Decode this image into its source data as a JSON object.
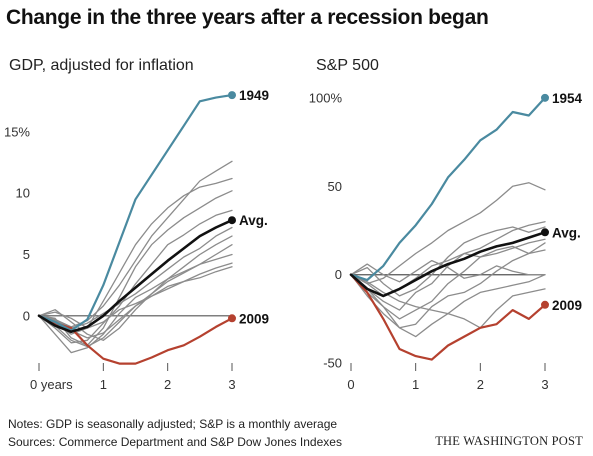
{
  "title": "Change in the three years after a recession began",
  "notes": "Notes: GDP is seasonally adjusted; S&P is a monthly average",
  "sources": "Sources: Commerce Department and S&P Dow Jones Indexes",
  "credit": "THE WASHINGTON POST",
  "colors": {
    "highlight_blue": "#4a8aa0",
    "highlight_red": "#b5412f",
    "average": "#111111",
    "background_lines": "#8c8c8c",
    "axis": "#555555"
  },
  "chart_data": [
    {
      "type": "line",
      "title": "GDP, adjusted for inflation",
      "xlabel": "",
      "ylabel": "",
      "x_ticks": [
        {
          "value": 0,
          "label": "0 years"
        },
        {
          "value": 1,
          "label": "1"
        },
        {
          "value": 2,
          "label": "2"
        },
        {
          "value": 3,
          "label": "3"
        }
      ],
      "y_ticks": [
        {
          "value": 0,
          "label": "0"
        },
        {
          "value": 5,
          "label": "5"
        },
        {
          "value": 10,
          "label": "10"
        },
        {
          "value": 15,
          "label": "15%"
        }
      ],
      "xlim": [
        0,
        3
      ],
      "ylim": [
        -4.5,
        18.5
      ],
      "grid": false,
      "series": [
        {
          "name": "1949",
          "role": "highlight_blue",
          "label_end": true,
          "x": [
            0,
            0.25,
            0.5,
            0.75,
            1.0,
            1.25,
            1.5,
            1.75,
            2.0,
            2.25,
            2.5,
            2.75,
            3.0
          ],
          "y": [
            0,
            -0.5,
            -1.2,
            -0.3,
            2.5,
            6.0,
            9.5,
            11.5,
            13.5,
            15.5,
            17.5,
            17.8,
            18.0
          ]
        },
        {
          "name": "Avg.",
          "role": "average",
          "label_end": true,
          "x": [
            0,
            0.25,
            0.5,
            0.75,
            1.0,
            1.25,
            1.5,
            1.75,
            2.0,
            2.25,
            2.5,
            2.75,
            3.0
          ],
          "y": [
            0,
            -0.8,
            -1.3,
            -0.9,
            0,
            1.2,
            2.3,
            3.4,
            4.5,
            5.5,
            6.5,
            7.2,
            7.8
          ]
        },
        {
          "name": "2009",
          "role": "highlight_red",
          "label_end": true,
          "x": [
            0,
            0.25,
            0.5,
            0.75,
            1.0,
            1.25,
            1.5,
            1.75,
            2.0,
            2.25,
            2.5,
            2.75,
            3.0
          ],
          "y": [
            0,
            -0.6,
            -1.0,
            -2.4,
            -3.5,
            -3.9,
            -3.9,
            -3.4,
            -2.8,
            -2.4,
            -1.7,
            -0.9,
            -0.2
          ]
        },
        {
          "name": "",
          "role": "background_lines",
          "x": [
            0,
            0.25,
            0.5,
            0.75,
            1.0,
            1.25,
            1.5,
            1.75,
            2.0,
            2.25,
            2.5,
            2.75,
            3.0
          ],
          "y": [
            0,
            -0.3,
            -0.9,
            -0.4,
            0.8,
            2.5,
            4.5,
            6.5,
            8.0,
            9.5,
            11.0,
            11.8,
            12.6
          ]
        },
        {
          "name": "",
          "role": "background_lines",
          "x": [
            0,
            0.25,
            0.5,
            0.75,
            1.0,
            1.25,
            1.5,
            1.75,
            2.0,
            2.25,
            2.5,
            2.75,
            3.0
          ],
          "y": [
            0,
            -0.6,
            -1.5,
            -1.0,
            1.2,
            3.5,
            5.8,
            7.5,
            8.8,
            9.8,
            10.5,
            10.8,
            11.2
          ]
        },
        {
          "name": "",
          "role": "background_lines",
          "x": [
            0,
            0.25,
            0.5,
            0.75,
            1.0,
            1.25,
            1.5,
            1.75,
            2.0,
            2.25,
            2.5,
            2.75,
            3.0
          ],
          "y": [
            0,
            -0.2,
            -1.8,
            -2.4,
            -1.0,
            1.5,
            4.0,
            5.8,
            7.0,
            8.0,
            8.8,
            9.6,
            10.2
          ]
        },
        {
          "name": "",
          "role": "background_lines",
          "x": [
            0,
            0.25,
            0.5,
            0.75,
            1.0,
            1.25,
            1.5,
            1.75,
            2.0,
            2.25,
            2.5,
            2.75,
            3.0
          ],
          "y": [
            0,
            -1.0,
            -2.2,
            -2.0,
            -0.6,
            0.8,
            2.6,
            4.2,
            5.8,
            6.6,
            7.5,
            8.2,
            8.6
          ]
        },
        {
          "name": "",
          "role": "background_lines",
          "x": [
            0,
            0.25,
            0.5,
            0.75,
            1.0,
            1.25,
            1.5,
            1.75,
            2.0,
            2.25,
            2.5,
            2.75,
            3.0
          ],
          "y": [
            0,
            -0.4,
            -1.0,
            -0.6,
            0.2,
            1.0,
            1.8,
            2.8,
            3.8,
            4.8,
            5.5,
            6.5,
            7.2
          ]
        },
        {
          "name": "",
          "role": "background_lines",
          "x": [
            0,
            0.25,
            0.5,
            0.75,
            1.0,
            1.25,
            1.5,
            1.75,
            2.0,
            2.25,
            2.5,
            2.75,
            3.0
          ],
          "y": [
            0,
            0.5,
            -0.5,
            -1.5,
            -2.0,
            -1.0,
            0.5,
            1.8,
            3.0,
            4.0,
            5.0,
            5.8,
            6.5
          ]
        },
        {
          "name": "",
          "role": "background_lines",
          "x": [
            0,
            0.25,
            0.5,
            0.75,
            1.0,
            1.25,
            1.5,
            1.75,
            2.0,
            2.25,
            2.5,
            2.75,
            3.0
          ],
          "y": [
            0,
            -0.8,
            -2.0,
            -2.5,
            -1.8,
            -0.5,
            0.8,
            1.8,
            2.8,
            3.5,
            4.2,
            5.0,
            5.8
          ]
        },
        {
          "name": "",
          "role": "background_lines",
          "x": [
            0,
            0.25,
            0.5,
            0.75,
            1.0,
            1.25,
            1.5,
            1.75,
            2.0,
            2.25,
            2.5,
            2.75,
            3.0
          ],
          "y": [
            0,
            -1.5,
            -3.0,
            -2.6,
            -1.5,
            0.2,
            1.5,
            2.2,
            3.0,
            3.6,
            4.2,
            4.6,
            5.0
          ]
        },
        {
          "name": "",
          "role": "background_lines",
          "x": [
            0,
            0.25,
            0.5,
            0.75,
            1.0,
            1.25,
            1.5,
            1.75,
            2.0,
            2.25,
            2.5,
            2.75,
            3.0
          ],
          "y": [
            0,
            -0.5,
            -1.2,
            -1.8,
            -1.4,
            -0.3,
            0.8,
            1.6,
            2.4,
            2.8,
            3.4,
            3.9,
            4.3
          ]
        },
        {
          "name": "",
          "role": "background_lines",
          "x": [
            0,
            0.25,
            0.5,
            0.75,
            1.0,
            1.25,
            1.5,
            1.75,
            2.0,
            2.25,
            2.5,
            2.75,
            3.0
          ],
          "y": [
            0,
            0.3,
            -0.2,
            -1.0,
            -0.5,
            0.5,
            1.0,
            1.6,
            2.2,
            2.8,
            3.1,
            3.6,
            4.0
          ]
        }
      ]
    },
    {
      "type": "line",
      "title": "S&P 500",
      "xlabel": "",
      "ylabel": "",
      "x_ticks": [
        {
          "value": 0,
          "label": "0"
        },
        {
          "value": 1,
          "label": "1"
        },
        {
          "value": 2,
          "label": "2"
        },
        {
          "value": 3,
          "label": "3"
        }
      ],
      "y_ticks": [
        {
          "value": -50,
          "label": "-50"
        },
        {
          "value": 0,
          "label": "0"
        },
        {
          "value": 50,
          "label": "50"
        },
        {
          "value": 100,
          "label": "100%"
        }
      ],
      "xlim": [
        0,
        3
      ],
      "ylim": [
        -55,
        105
      ],
      "grid": false,
      "series": [
        {
          "name": "1954",
          "role": "highlight_blue",
          "label_end": true,
          "x": [
            0,
            0.25,
            0.5,
            0.75,
            1.0,
            1.25,
            1.5,
            1.75,
            2.0,
            2.25,
            2.5,
            2.75,
            3.0
          ],
          "y": [
            0,
            -3,
            5,
            18,
            28,
            40,
            55,
            65,
            76,
            82,
            92,
            90,
            100
          ]
        },
        {
          "name": "Avg.",
          "role": "average",
          "label_end": true,
          "x": [
            0,
            0.25,
            0.5,
            0.75,
            1.0,
            1.25,
            1.5,
            1.75,
            2.0,
            2.25,
            2.5,
            2.75,
            3.0
          ],
          "y": [
            0,
            -8,
            -12,
            -8,
            -3,
            2,
            6,
            9,
            13,
            16,
            18,
            21,
            24
          ]
        },
        {
          "name": "2009",
          "role": "highlight_red",
          "label_end": true,
          "x": [
            0,
            0.25,
            0.5,
            0.75,
            1.0,
            1.25,
            1.5,
            1.75,
            2.0,
            2.25,
            2.5,
            2.75,
            3.0
          ],
          "y": [
            0,
            -10,
            -25,
            -42,
            -46,
            -48,
            -40,
            -35,
            -30,
            -28,
            -20,
            -25,
            -17
          ]
        },
        {
          "name": "",
          "role": "background_lines",
          "x": [
            0,
            0.25,
            0.5,
            0.75,
            1.0,
            1.25,
            1.5,
            1.75,
            2.0,
            2.25,
            2.5,
            2.75,
            3.0
          ],
          "y": [
            0,
            -5,
            -2,
            5,
            12,
            18,
            25,
            30,
            35,
            42,
            50,
            52,
            48
          ]
        },
        {
          "name": "",
          "role": "background_lines",
          "x": [
            0,
            0.25,
            0.5,
            0.75,
            1.0,
            1.25,
            1.5,
            1.75,
            2.0,
            2.25,
            2.5,
            2.75,
            3.0
          ],
          "y": [
            0,
            4,
            -5,
            -12,
            -8,
            0,
            10,
            18,
            22,
            25,
            27,
            24,
            27
          ]
        },
        {
          "name": "",
          "role": "background_lines",
          "x": [
            0,
            0.25,
            0.5,
            0.75,
            1.0,
            1.25,
            1.5,
            1.75,
            2.0,
            2.25,
            2.5,
            2.75,
            3.0
          ],
          "y": [
            0,
            -8,
            -15,
            -20,
            -10,
            -5,
            5,
            12,
            15,
            20,
            25,
            28,
            30
          ]
        },
        {
          "name": "",
          "role": "background_lines",
          "x": [
            0,
            0.25,
            0.5,
            0.75,
            1.0,
            1.25,
            1.5,
            1.75,
            2.0,
            2.25,
            2.5,
            2.75,
            3.0
          ],
          "y": [
            0,
            -10,
            -18,
            -25,
            -20,
            -15,
            -5,
            2,
            10,
            12,
            15,
            18,
            20
          ]
        },
        {
          "name": "",
          "role": "background_lines",
          "x": [
            0,
            0.25,
            0.5,
            0.75,
            1.0,
            1.25,
            1.5,
            1.75,
            2.0,
            2.25,
            2.5,
            2.75,
            3.0
          ],
          "y": [
            0,
            -12,
            -22,
            -30,
            -28,
            -18,
            -12,
            -10,
            -5,
            2,
            8,
            12,
            14
          ]
        },
        {
          "name": "",
          "role": "background_lines",
          "x": [
            0,
            0.25,
            0.5,
            0.75,
            1.0,
            1.25,
            1.5,
            1.75,
            2.0,
            2.25,
            2.5,
            2.75,
            3.0
          ],
          "y": [
            0,
            -4,
            -10,
            -15,
            -18,
            -20,
            -22,
            -15,
            -10,
            -8,
            -6,
            -4,
            0
          ]
        },
        {
          "name": "",
          "role": "background_lines",
          "x": [
            0,
            0.25,
            0.5,
            0.75,
            1.0,
            1.25,
            1.5,
            1.75,
            2.0,
            2.25,
            2.5,
            2.75,
            3.0
          ],
          "y": [
            0,
            -8,
            -18,
            -30,
            -35,
            -28,
            -22,
            -25,
            -30,
            -20,
            -12,
            -10,
            -8
          ]
        },
        {
          "name": "",
          "role": "background_lines",
          "x": [
            0,
            0.25,
            0.5,
            0.75,
            1.0,
            1.25,
            1.5,
            1.75,
            2.0,
            2.25,
            2.5,
            2.75,
            3.0
          ],
          "y": [
            0,
            -5,
            -12,
            -8,
            -2,
            5,
            8,
            12,
            10,
            14,
            16,
            12,
            18
          ]
        },
        {
          "name": "",
          "role": "background_lines",
          "x": [
            0,
            0.25,
            0.5,
            0.75,
            1.0,
            1.25,
            1.5,
            1.75,
            2.0,
            2.25,
            2.5,
            2.75,
            3.0
          ],
          "y": [
            0,
            6,
            0,
            -4,
            2,
            8,
            4,
            -2,
            0,
            5,
            2,
            0,
            0
          ]
        }
      ]
    }
  ]
}
